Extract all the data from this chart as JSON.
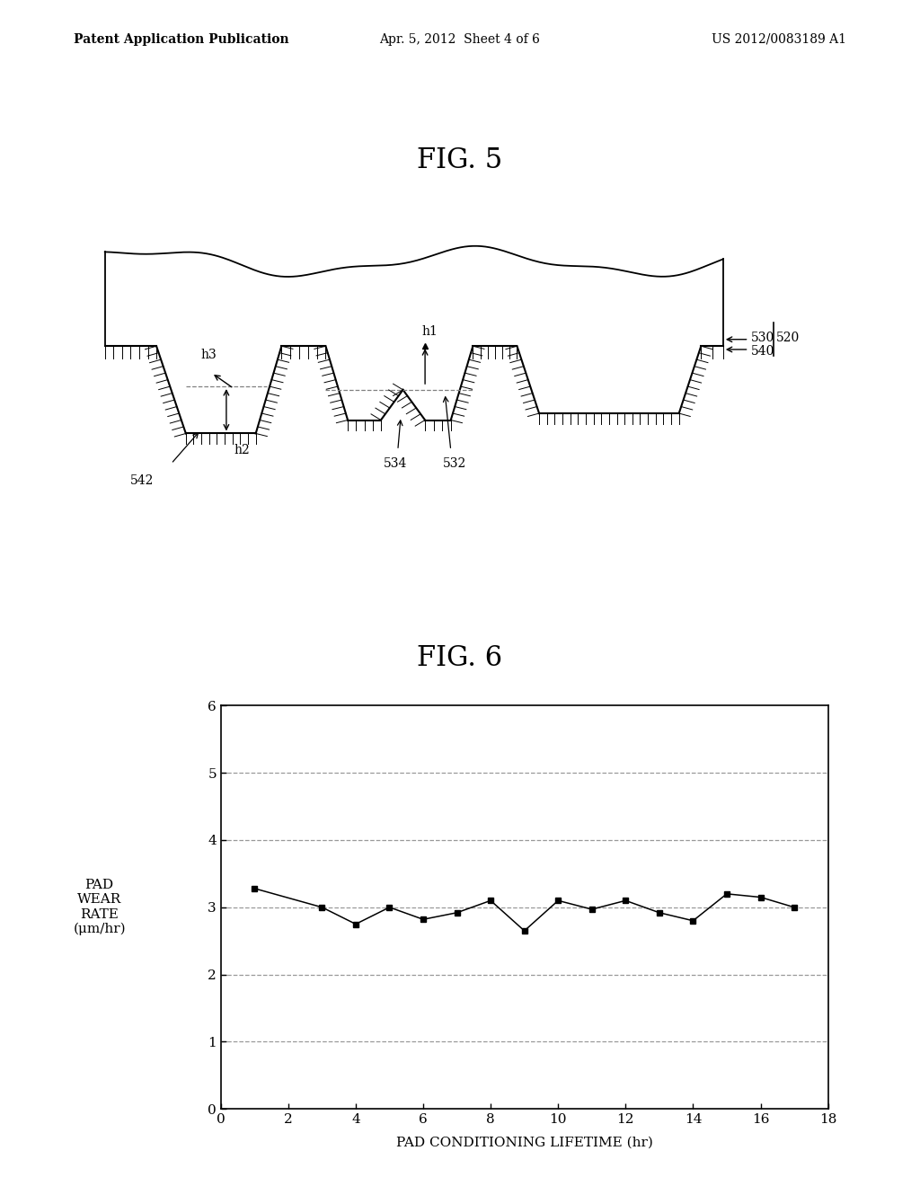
{
  "header_left": "Patent Application Publication",
  "header_mid": "Apr. 5, 2012  Sheet 4 of 6",
  "header_right": "US 2012/0083189 A1",
  "fig5_title": "FIG. 5",
  "fig6_title": "FIG. 6",
  "graph_x": [
    1,
    3,
    4,
    5,
    6,
    7,
    8,
    9,
    10,
    11,
    12,
    13,
    14,
    15,
    16,
    17
  ],
  "graph_y": [
    3.28,
    3.0,
    2.75,
    3.0,
    2.82,
    2.92,
    3.1,
    2.65,
    3.1,
    2.97,
    3.1,
    2.92,
    2.8,
    3.2,
    3.15,
    3.0
  ],
  "xlabel": "PAD CONDITIONING LIFETIME (hr)",
  "ylabel_line1": "PAD",
  "ylabel_line2": "WEAR",
  "ylabel_line3": "RATE",
  "ylabel_line4": "(μm/hr)",
  "xlim": [
    0,
    18
  ],
  "ylim": [
    0,
    6
  ],
  "xticks": [
    0,
    2,
    4,
    6,
    8,
    10,
    12,
    14,
    16,
    18
  ],
  "yticks": [
    0,
    1,
    2,
    3,
    4,
    5,
    6
  ],
  "bg_color": "#ffffff",
  "line_color": "#000000",
  "grid_color": "#888888",
  "label_530": "530",
  "label_520": "520",
  "label_540": "540",
  "label_542": "542",
  "label_534": "534",
  "label_532": "532",
  "label_h1": "h1",
  "label_h2": "h2",
  "label_h3": "h3"
}
